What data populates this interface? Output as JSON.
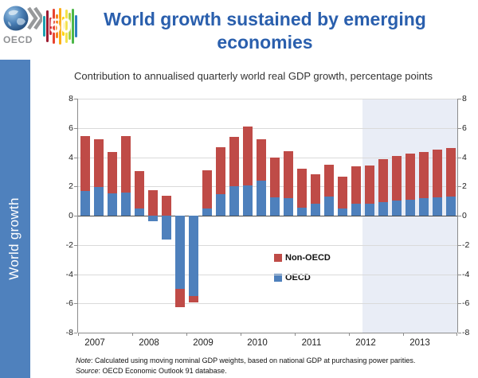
{
  "header": {
    "logo_text": "OECD",
    "logo50_text": "50",
    "logo50_colors": [
      "#1ba0b0",
      "#9c1b30",
      "#cf2a36",
      "#e8432f",
      "#f58220",
      "#fbae17",
      "#ffd100",
      "#f3e24a",
      "#a8cf45",
      "#4cb748",
      "#2e7fc2"
    ],
    "title": "World growth sustained by emerging economies",
    "subtitle": "Contribution to annualised quarterly world real GDP growth, percentage points"
  },
  "sidebar": {
    "label": "World growth",
    "color": "#4f81bd"
  },
  "chart_data": {
    "type": "bar",
    "stacked": true,
    "title": "Contribution to annualised quarterly world real GDP growth, percentage points",
    "xlabel": "",
    "ylabel": "percentage points",
    "ylim": [
      -8,
      8
    ],
    "yticks": [
      8,
      6,
      4,
      2,
      0,
      -2,
      -4,
      -6,
      -8
    ],
    "grid": true,
    "x_years": [
      "2007",
      "2008",
      "2009",
      "2010",
      "2011",
      "2012",
      "2013"
    ],
    "quarters_per_year": 4,
    "series": [
      {
        "name": "OECD",
        "color": "#4e80bc",
        "values": [
          1.7,
          1.95,
          1.55,
          1.6,
          0.5,
          -0.4,
          -1.65,
          -5.0,
          -5.5,
          0.5,
          1.45,
          2.0,
          2.05,
          2.4,
          1.25,
          1.2,
          0.55,
          0.8,
          1.3,
          0.5,
          0.8,
          0.8,
          0.95,
          1.05,
          1.1,
          1.2,
          1.25,
          1.3
        ]
      },
      {
        "name": "Non-OECD",
        "color": "#bf4b47",
        "values": [
          3.75,
          3.3,
          2.8,
          3.85,
          2.55,
          1.75,
          1.35,
          -1.25,
          -0.45,
          2.6,
          3.25,
          3.4,
          4.05,
          2.85,
          2.7,
          3.2,
          2.65,
          2.05,
          2.2,
          2.15,
          2.6,
          2.65,
          2.9,
          3.05,
          3.15,
          3.15,
          3.25,
          3.3
        ]
      }
    ],
    "legend": [
      {
        "label": "Non-OECD",
        "color": "#bf4b47"
      },
      {
        "label": "OECD",
        "color": "#4e80bc"
      }
    ],
    "legend_position": "inside-lower-middle",
    "forecast_shading": {
      "start_index": 21,
      "color": "#e9edf6"
    }
  },
  "footer": {
    "note_label": "Note",
    "note_text": ": Calculated using moving nominal GDP weights, based on national GDP at purchasing power parities.",
    "source_label": "Source",
    "source_text": ": OECD Economic Outlook 91 database."
  }
}
